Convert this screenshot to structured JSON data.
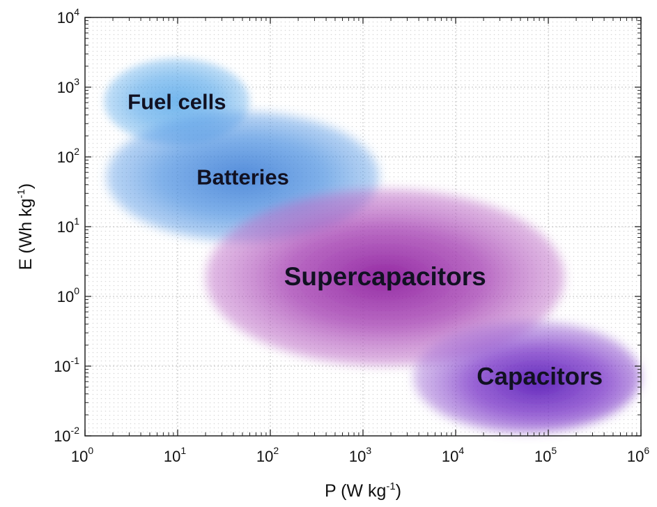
{
  "chart_data": {
    "type": "scatter",
    "title": "",
    "xscale": "log",
    "yscale": "log",
    "xlim": [
      1,
      1000000
    ],
    "ylim": [
      0.01,
      10000
    ],
    "grid": true,
    "xlabel": {
      "base": "P (W kg",
      "sup": "-1",
      "close": ")"
    },
    "ylabel": {
      "base": "E (Wh kg",
      "sup": "-1",
      "close": ")"
    },
    "xticks": [
      {
        "base": "10",
        "exp": "0"
      },
      {
        "base": "10",
        "exp": "1"
      },
      {
        "base": "10",
        "exp": "2"
      },
      {
        "base": "10",
        "exp": "3"
      },
      {
        "base": "10",
        "exp": "4"
      },
      {
        "base": "10",
        "exp": "5"
      },
      {
        "base": "10",
        "exp": "6"
      }
    ],
    "yticks": [
      {
        "base": "10",
        "exp": "-2"
      },
      {
        "base": "10",
        "exp": "-1"
      },
      {
        "base": "10",
        "exp": "0"
      },
      {
        "base": "10",
        "exp": "1"
      },
      {
        "base": "10",
        "exp": "2"
      },
      {
        "base": "10",
        "exp": "3"
      },
      {
        "base": "10",
        "exp": "4"
      }
    ],
    "regions": [
      {
        "label": "Fuel cells",
        "x_range": [
          1.6,
          60
        ],
        "y_range": [
          150,
          2600
        ],
        "color": "#5aa9ea"
      },
      {
        "label": "Batteries",
        "x_range": [
          1.7,
          1500
        ],
        "y_range": [
          6,
          450
        ],
        "color": "#4a8fe0"
      },
      {
        "label": "Supercapacitors",
        "x_range": [
          20,
          150000
        ],
        "y_range": [
          0.1,
          35
        ],
        "color": "#a23ab0"
      },
      {
        "label": "Capacitors",
        "x_range": [
          3500,
          1000000
        ],
        "y_range": [
          0.011,
          0.45
        ],
        "color": "#7a34c8"
      }
    ]
  }
}
